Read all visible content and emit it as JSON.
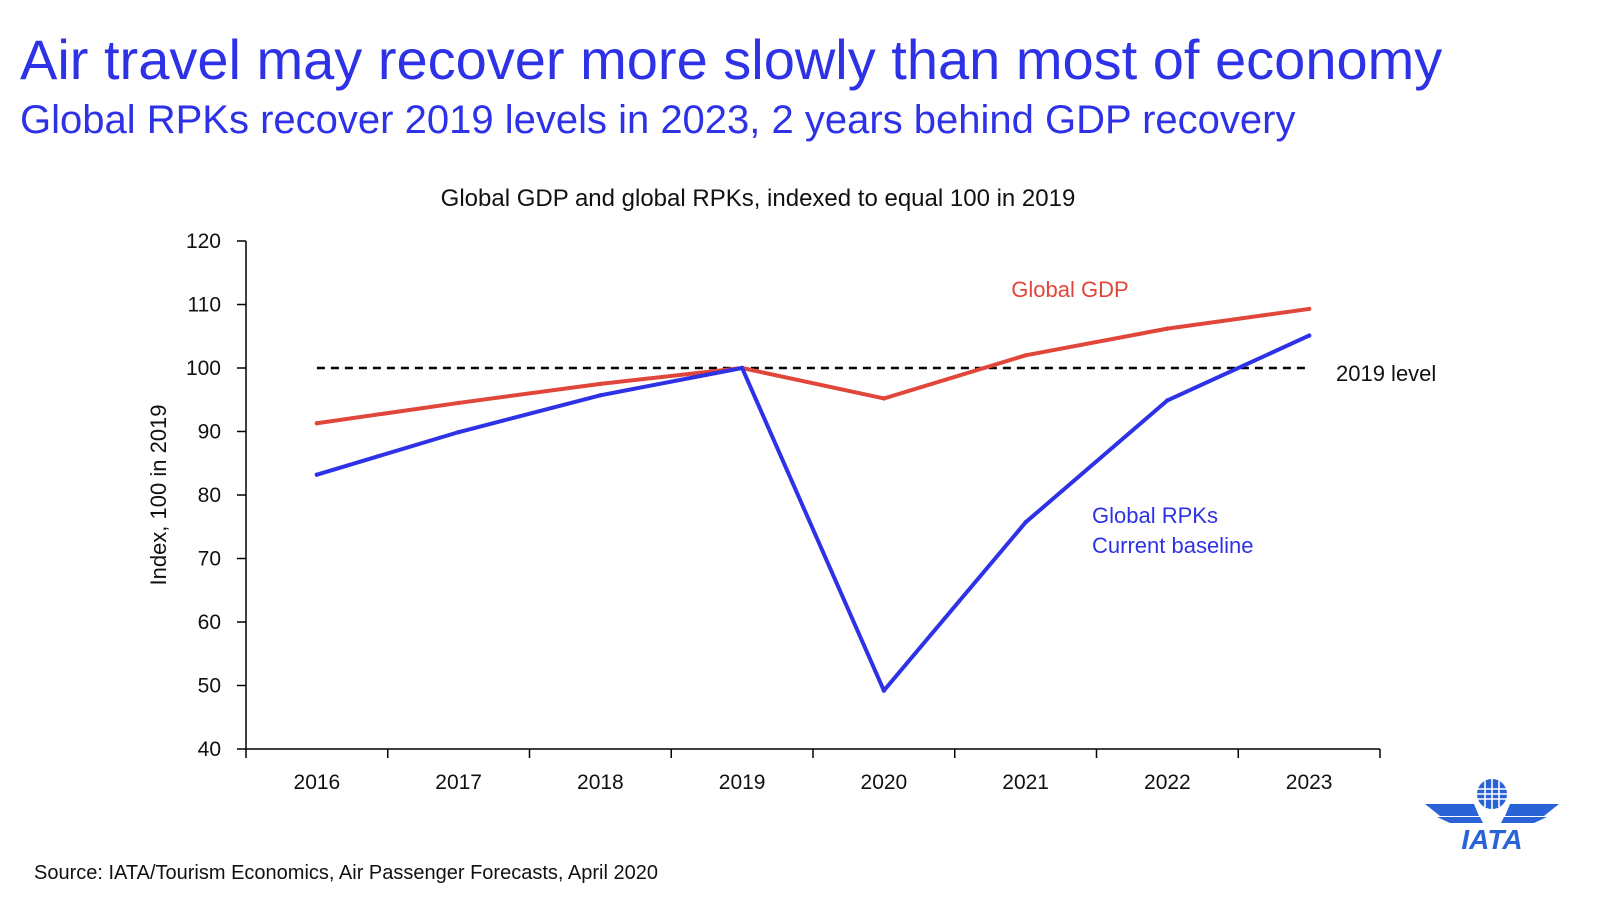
{
  "header": {
    "title": "Air travel may recover more slowly than most of economy",
    "subtitle": "Global RPKs recover 2019 levels in 2023, 2 years behind GDP recovery"
  },
  "footer": {
    "source": "Source: IATA/Tourism Economics, Air Passenger Forecasts, April 2020",
    "logo_text": "IATA"
  },
  "colors": {
    "accent": "#2e32e6",
    "gdp": "#e0463a",
    "rpk": "#2e32e6",
    "reference": "#000000",
    "logo": "#2a63d6"
  },
  "chart_data": {
    "type": "line",
    "title": "Global GDP and global RPKs, indexed to equal 100 in 2019",
    "ylabel": "Index, 100 in 2019",
    "xlabel": "",
    "categories": [
      "2016",
      "2017",
      "2018",
      "2019",
      "2020",
      "2021",
      "2022",
      "2023"
    ],
    "ylim": [
      40,
      120
    ],
    "yticks": [
      40,
      50,
      60,
      70,
      80,
      90,
      100,
      110,
      120
    ],
    "grid": false,
    "series": [
      {
        "name": "Global GDP",
        "color": "#e0463a",
        "values": [
          91.3,
          94.5,
          97.5,
          100,
          95.2,
          102,
          106.2,
          109.3
        ]
      },
      {
        "name": "Global RPKs",
        "label_line2": "Current baseline",
        "color": "#2e32e6",
        "values": [
          83.2,
          89.9,
          95.7,
          100,
          49.2,
          75.7,
          94.9,
          105.1
        ]
      }
    ],
    "reference_line": {
      "label": "2019 level",
      "value": 100,
      "style": "dashed"
    }
  }
}
